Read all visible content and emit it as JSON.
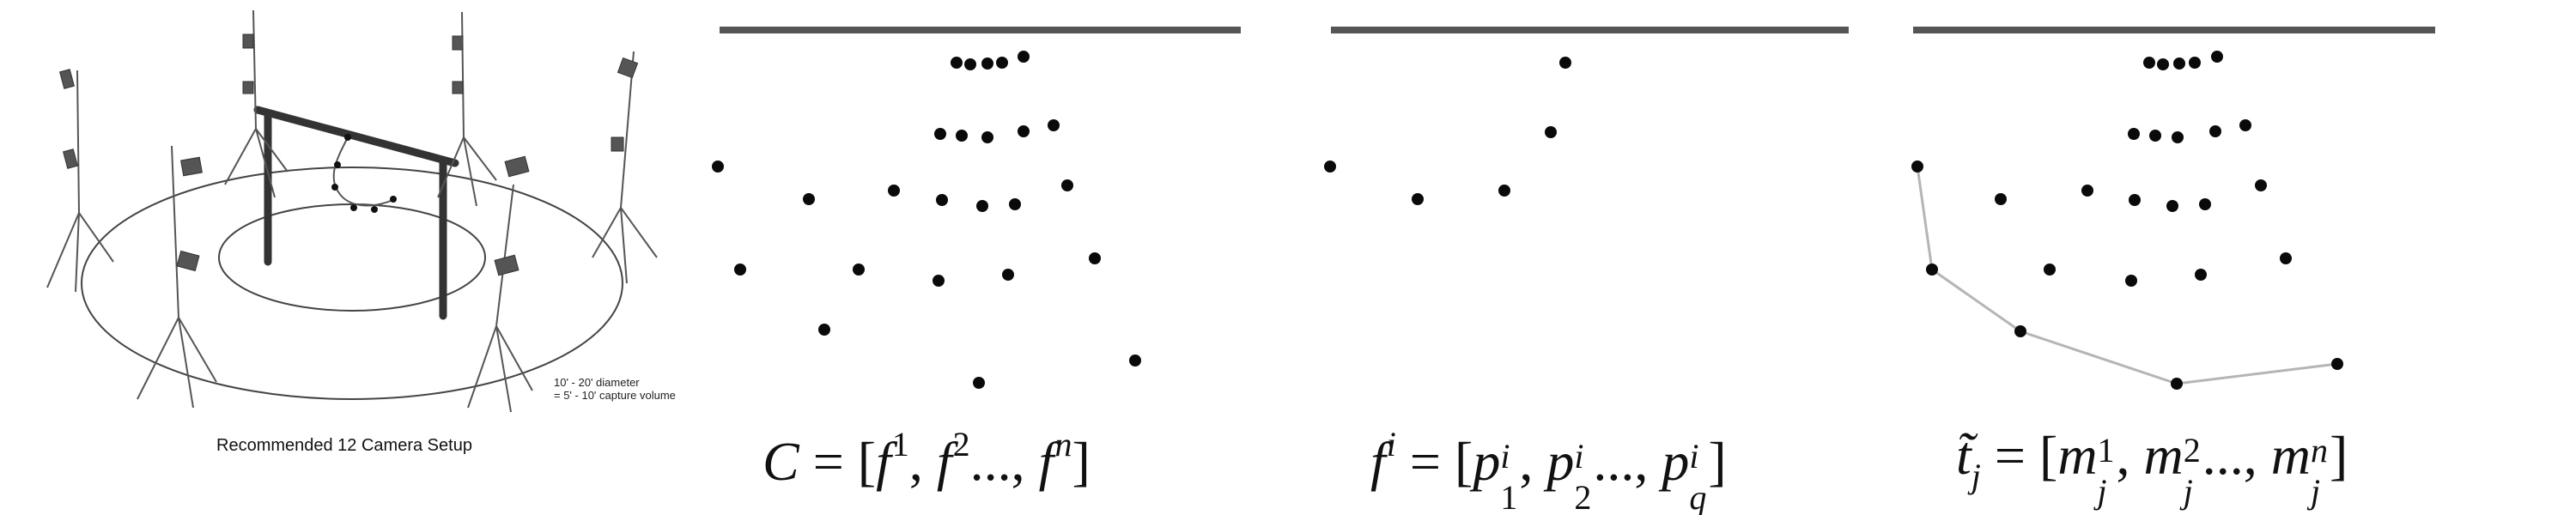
{
  "panels": {
    "setup": {
      "caption": "Recommended 12 Camera Setup",
      "note_line1": "10' - 20' diameter",
      "note_line2": "= 5' - 10' capture volume"
    },
    "panel2": {
      "formula": "C = [f^1, f^2..., f^n]",
      "formula_parts": {
        "lhs": "C",
        "sym": "f",
        "s1": "1",
        "s2": "2",
        "sn": "n"
      }
    },
    "panel3": {
      "formula": "f^i = [p_1^i, p_2^i..., p_q^i]",
      "formula_parts": {
        "lhs": "f",
        "lhs_sup": "i",
        "sym": "p",
        "sub1": "1",
        "sub2": "2",
        "subq": "q",
        "sup": "i"
      }
    },
    "panel4": {
      "formula": "t̃_j = [m_j^1, m_j^2..., m_j^n]",
      "formula_parts": {
        "lhs": "t̃",
        "lhs_sub": "j",
        "sym": "m",
        "sub": "j",
        "sup1": "1",
        "sup2": "2",
        "supn": "n"
      }
    }
  },
  "colors": {
    "dot": "#0a0a0a",
    "bar": "#555555",
    "path": "#b5b5b5",
    "ink": "#333333"
  }
}
